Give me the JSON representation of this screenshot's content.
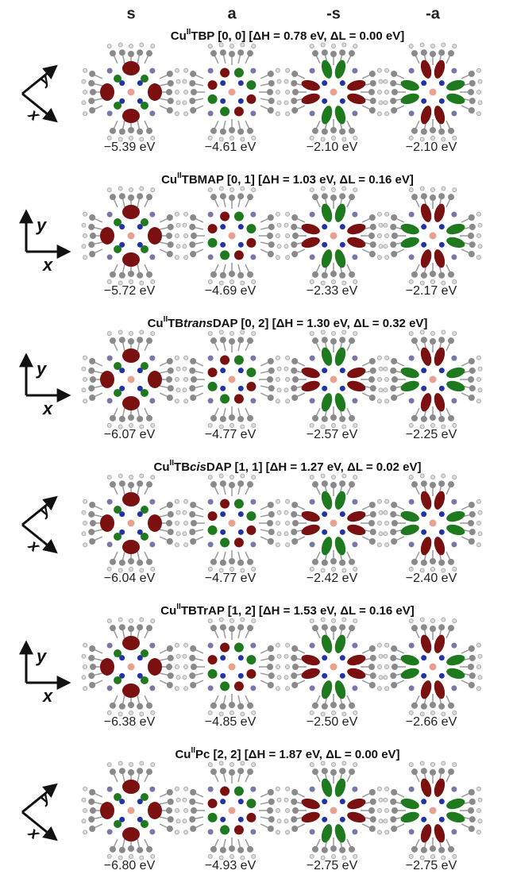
{
  "columns": [
    "s",
    "a",
    "-s",
    "-a"
  ],
  "rows": [
    {
      "title": [
        "Cu",
        "II",
        "TBP [0, 0] [ΔH = 0.78 eV, ΔL = 0.00 eV]"
      ],
      "axes": [
        "y",
        "x"
      ],
      "energies": [
        "−5.39 eV",
        "−4.61 eV",
        "−2.10 eV",
        "−2.10 eV"
      ]
    },
    {
      "title": [
        "Cu",
        "II",
        "TBMAP  [0, 1] [ΔH = 1.03 eV, ΔL = 0.16 eV]"
      ],
      "axes": [
        "y",
        "x"
      ],
      "energies": [
        "−5.72 eV",
        "−4.69 eV",
        "−2.33 eV",
        "−2.17 eV"
      ]
    },
    {
      "title": [
        "Cu",
        "II",
        "TB",
        "trans",
        "DAP [0, 2] [ΔH = 1.30 eV, ΔL = 0.32 eV]"
      ],
      "axes": [
        "y",
        "x"
      ],
      "energies": [
        "−6.07 eV",
        "−4.77 eV",
        "−2.57 eV",
        "−2.25 eV"
      ]
    },
    {
      "title": [
        "Cu",
        "II",
        "TB",
        "cis",
        "DAP [1, 1] [ΔH = 1.27 eV, ΔL = 0.02 eV]"
      ],
      "axes": [
        "y",
        "x"
      ],
      "energies": [
        "−6.04 eV",
        "−4.77 eV",
        "−2.42 eV",
        "−2.40 eV"
      ]
    },
    {
      "title": [
        "Cu",
        "II",
        "TBTrAP  [1, 2] [ΔH = 1.53 eV, ΔL = 0.16 eV]"
      ],
      "axes": [
        "y",
        "x"
      ],
      "energies": [
        "−6.38 eV",
        "−4.85 eV",
        "−2.50 eV",
        "−2.66 eV"
      ]
    },
    {
      "title": [
        "Cu",
        "II",
        "Pc  [2, 2] [ΔH = 1.87 eV, ΔL = 0.00 eV]"
      ],
      "axes": [
        "y",
        "x"
      ],
      "energies": [
        "−6.80 eV",
        "−4.93 eV",
        "−2.75 eV",
        "−2.75 eV"
      ]
    }
  ]
}
